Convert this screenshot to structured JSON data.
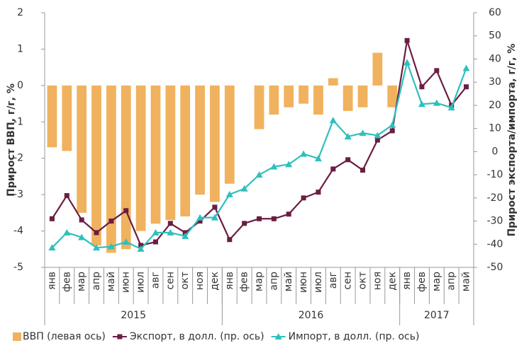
{
  "chart_data": {
    "type": "combo",
    "category_groups": [
      {
        "label": "2015",
        "categories": [
          "янв",
          "фев",
          "мар",
          "апр",
          "май",
          "июн",
          "июл",
          "авг",
          "сен",
          "окт",
          "ноя",
          "дек"
        ]
      },
      {
        "label": "2016",
        "categories": [
          "янв",
          "фев",
          "мар",
          "апр",
          "май",
          "июн",
          "июл",
          "авг",
          "сен",
          "окт",
          "ноя",
          "дек"
        ]
      },
      {
        "label": "2017",
        "categories": [
          "янв",
          "фев",
          "мар",
          "апр",
          "май"
        ]
      }
    ],
    "series": [
      {
        "name": "ВВП (левая ось)",
        "type": "bar",
        "axis": "y",
        "color": "#f0b25e",
        "values": [
          -1.7,
          -1.8,
          -3.5,
          -4.4,
          -4.6,
          -4.5,
          -4.0,
          -3.8,
          -3.7,
          -3.6,
          -3.0,
          -3.2,
          -2.7,
          0,
          -1.2,
          -0.8,
          -0.6,
          -0.5,
          -0.8,
          0.2,
          -0.7,
          -0.6,
          0.9,
          -0.6,
          null,
          null,
          null,
          null,
          null
        ]
      },
      {
        "name": "Экспорт, в долл. (пр. ось)",
        "type": "line",
        "marker": "square",
        "axis": "y2",
        "color": "#6b1d42",
        "values": [
          -29,
          -19,
          -29.5,
          -35,
          -30,
          -25.5,
          -40.5,
          -39,
          -31,
          -35,
          -30,
          -24,
          -38,
          -31,
          -29,
          -29,
          -27,
          -20,
          -17.5,
          -7.5,
          -3.5,
          -8,
          5,
          9,
          48,
          28,
          35,
          20,
          28
        ]
      },
      {
        "name": "Импорт, в долл. (пр. ось)",
        "type": "line",
        "marker": "triangle",
        "axis": "y2",
        "color": "#2ec0bd",
        "values": [
          -41.5,
          -35,
          -37,
          -41.5,
          -41,
          -39,
          -42,
          -35,
          -35,
          -36.5,
          -28.5,
          -28.5,
          -18.5,
          -16,
          -10,
          -6.5,
          -5.5,
          -1,
          -3,
          13.5,
          6.5,
          8,
          7,
          11.5,
          38.5,
          20.5,
          21,
          19,
          36
        ]
      }
    ],
    "ylabel": "Прирост ВВП, г/г, %",
    "y2label": "Прирост экспорта/импорта, г/г, %",
    "ylim": [
      -5,
      2
    ],
    "yticks": [
      -5,
      -4,
      -3,
      -2,
      -1,
      0,
      1,
      2
    ],
    "y2lim": [
      -50,
      60
    ],
    "y2ticks": [
      -50,
      -40,
      -30,
      -20,
      -10,
      0,
      10,
      20,
      30,
      40,
      50,
      60
    ],
    "legend": "bottom"
  }
}
